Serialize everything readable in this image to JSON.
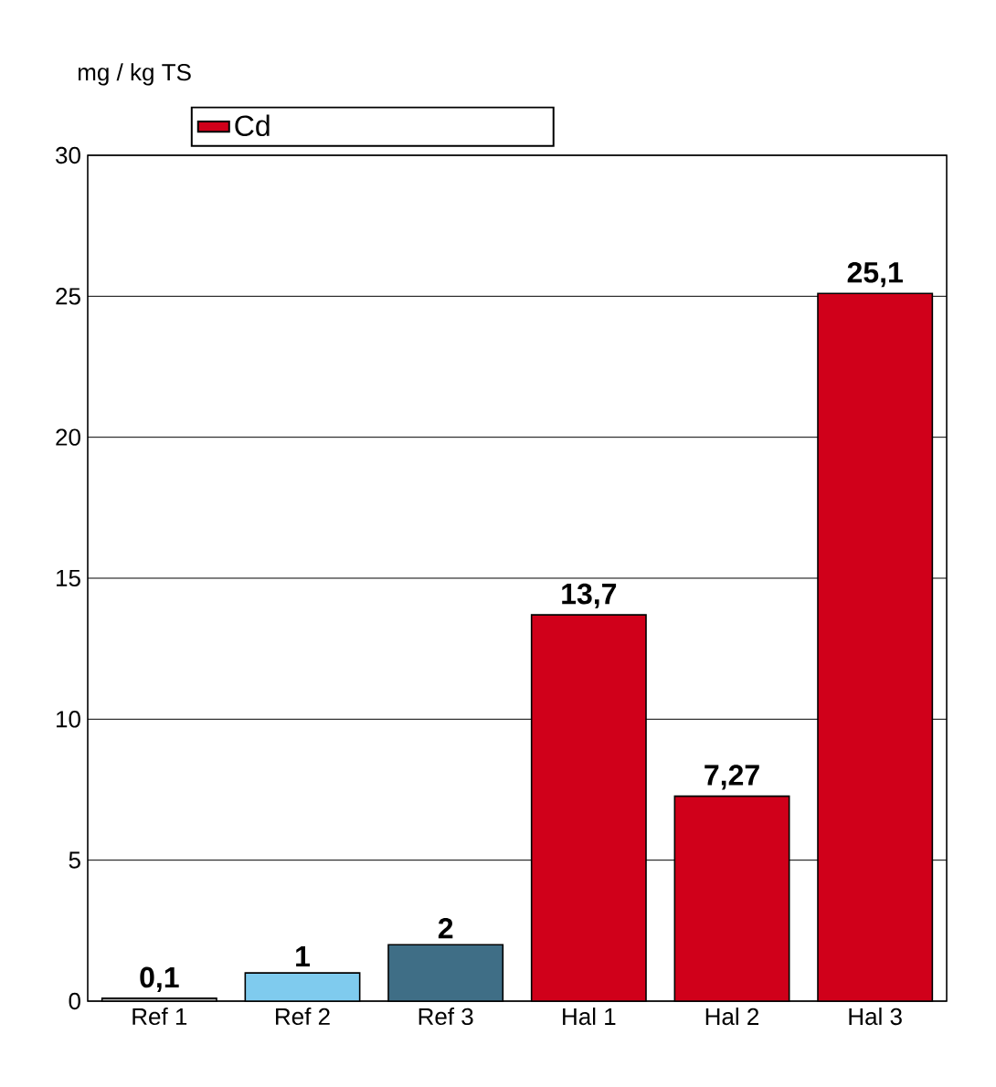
{
  "chart_data": {
    "type": "bar",
    "ylabel": "mg / kg TS",
    "categories": [
      "Ref 1",
      "Ref 2",
      "Ref 3",
      "Hal 1",
      "Hal 2",
      "Hal 3"
    ],
    "series": [
      {
        "name": "Cd",
        "color": "#d0001a",
        "colors": [
          "#b4b4b4",
          "#7fcbee",
          "#3f6e86",
          "#d0001a",
          "#d0001a",
          "#d0001a"
        ],
        "values": [
          0.1,
          1,
          2,
          13.7,
          7.27,
          25.1
        ],
        "value_labels": [
          "0,1",
          "1",
          "2",
          "13,7",
          "7,27",
          "25,1"
        ]
      }
    ],
    "ylim": [
      0,
      30
    ],
    "yticks": [
      0,
      5,
      10,
      15,
      20,
      25,
      30
    ],
    "grid": "y",
    "legend": "top left"
  }
}
